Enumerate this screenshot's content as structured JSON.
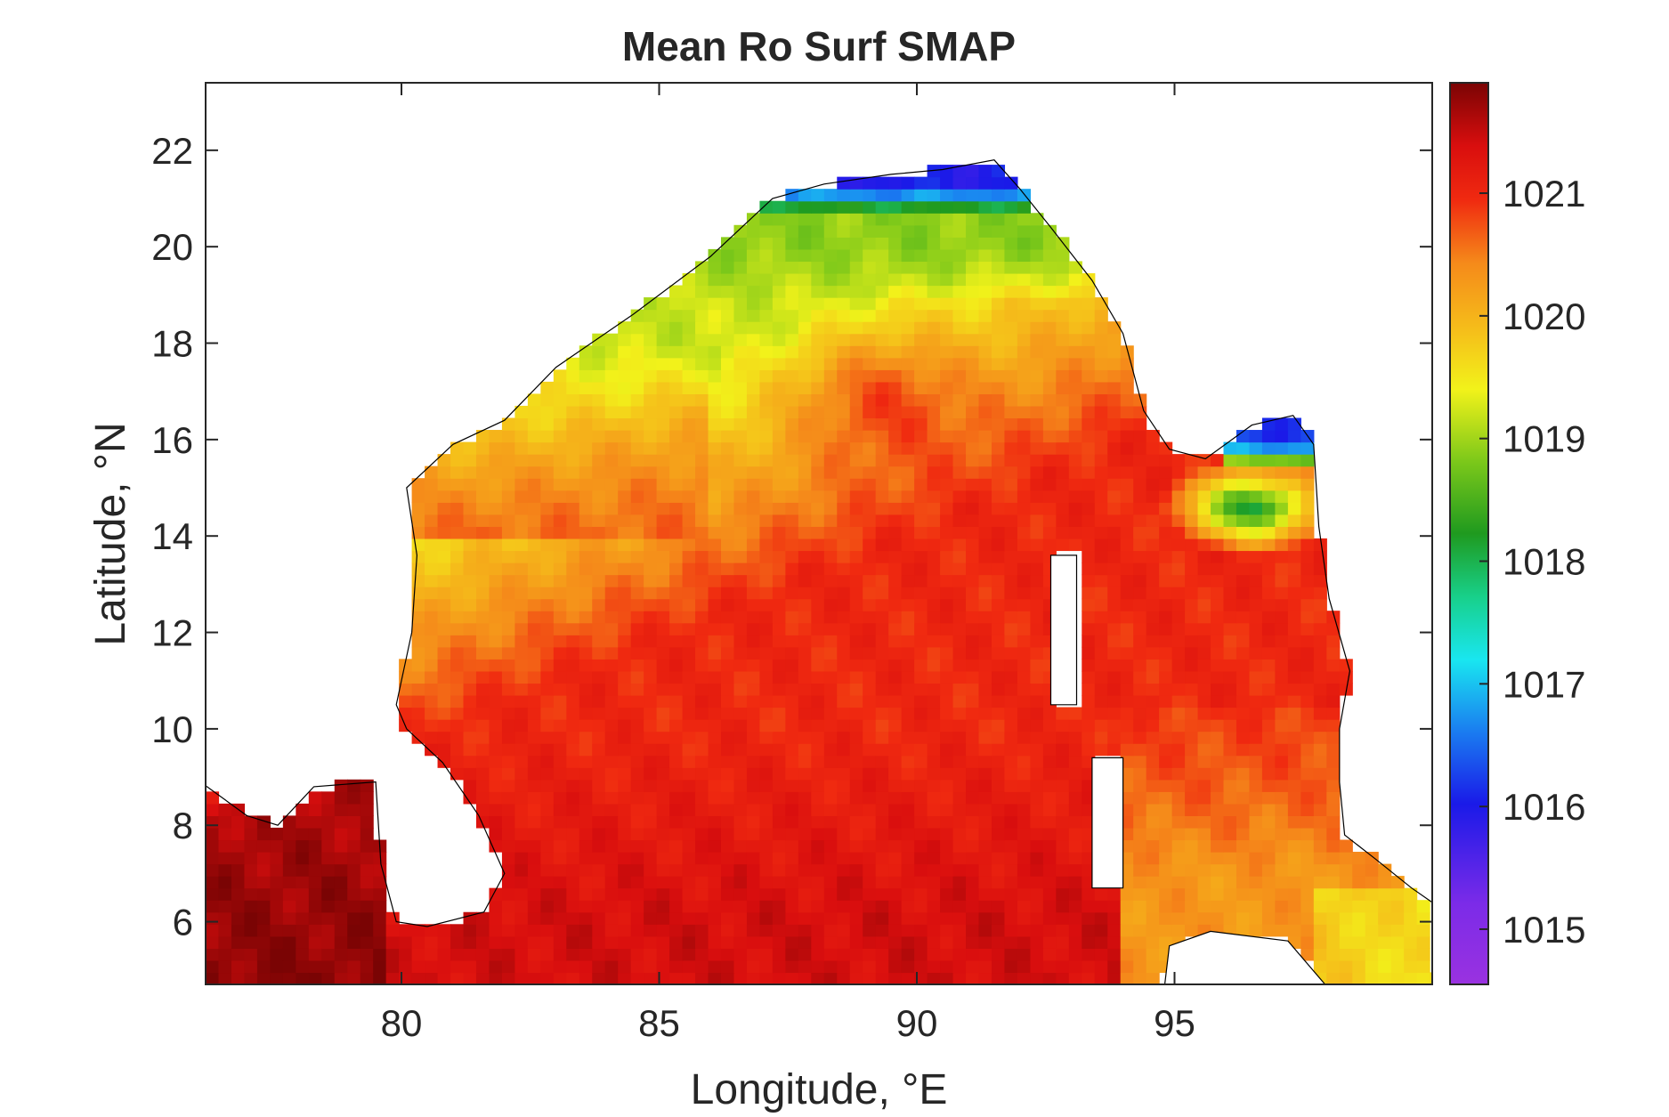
{
  "chart_data": {
    "type": "heatmap",
    "title": "Mean Ro Surf SMAP",
    "xlabel": "Longitude, °E",
    "ylabel": "Latitude, °N",
    "xlim": [
      76.2,
      100
    ],
    "ylim": [
      4.7,
      23.4
    ],
    "xticks": [
      80,
      85,
      90,
      95
    ],
    "xtick_labels": [
      "80",
      "85",
      "90",
      "95"
    ],
    "yticks": [
      6,
      8,
      10,
      12,
      14,
      16,
      18,
      20,
      22
    ],
    "ytick_labels": [
      "6",
      "8",
      "10",
      "12",
      "14",
      "16",
      "18",
      "20",
      "22"
    ],
    "colorbar": {
      "clim": [
        1014.55,
        1021.9
      ],
      "ticks": [
        1015,
        1016,
        1017,
        1018,
        1019,
        1020,
        1021
      ],
      "tick_labels": [
        "1015",
        "1016",
        "1017",
        "1018",
        "1019",
        "1020",
        "1021"
      ],
      "colormap_stops": [
        [
          0.0,
          "#9a32e0"
        ],
        [
          0.09,
          "#7b2be8"
        ],
        [
          0.2,
          "#1a1ae8"
        ],
        [
          0.28,
          "#1a7cf0"
        ],
        [
          0.36,
          "#19e6f0"
        ],
        [
          0.43,
          "#18d08a"
        ],
        [
          0.5,
          "#1f9a1f"
        ],
        [
          0.58,
          "#7cc81a"
        ],
        [
          0.66,
          "#f2f21a"
        ],
        [
          0.72,
          "#f5c21a"
        ],
        [
          0.8,
          "#f58a1a"
        ],
        [
          0.87,
          "#f02a10"
        ],
        [
          0.93,
          "#d90e0e"
        ],
        [
          1.0,
          "#7a0404"
        ]
      ]
    },
    "fields": {
      "southwest_arabian_sea_lon76_79_lat5_8.5": 1021.8,
      "southern_bay_lon83_93_lat5_10": 1021.4,
      "central_bay_lon82_88_lat10_14": 1021.0,
      "western_bay_lon81_85_lat14_16": 1020.6,
      "bay_lon88_91_lat15_17": 1020.1,
      "northern_bay_lon88_93_lat17_19": 1019.2,
      "head_of_bay_lon87_92_lat19.5_20.8": 1018.9,
      "coastal_edge_lon87.5_91.5_lat21": 1016.0,
      "east_of_andaman_lon95_97.5_lat14_15": 1017.9,
      "gulf_of_martaban_lon96_97.5_lat15.5_16": 1016.2,
      "andaman_sea_south_lon95_98_lat7_10": 1020.3,
      "malacca_entrance_lon98_100_lat5_6": 1019.8
    },
    "grid": "off",
    "colorbar_placement": "right"
  }
}
